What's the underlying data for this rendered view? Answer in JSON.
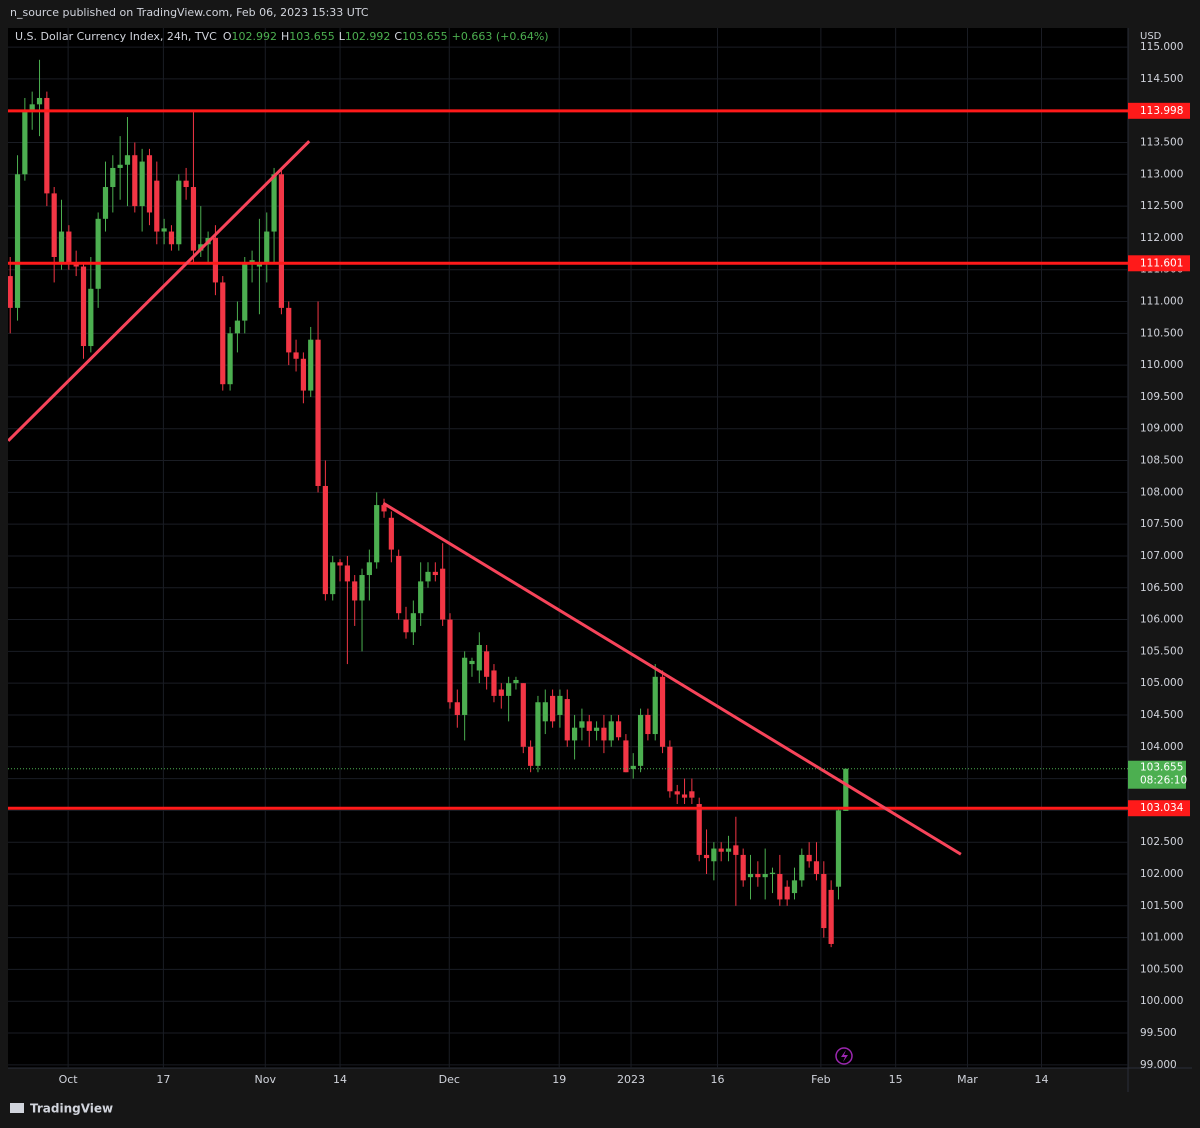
{
  "header": {
    "publisher": "n_source published on TradingView.com, Feb 06, 2023 15:33 UTC"
  },
  "footer": {
    "brand": "TradingView"
  },
  "chart_data": {
    "type": "candlestick",
    "title": "U.S. Dollar Currency Index, 24h, TVC",
    "ohlc_keys": [
      "O",
      "H",
      "L",
      "C"
    ],
    "change": "+0.663 (+0.64%)",
    "currency": "USD",
    "open": [
      111.4,
      110.9,
      113.0,
      114.0,
      114.1,
      114.2,
      112.7,
      111.6,
      112.1,
      111.6,
      111.55,
      110.3,
      111.2,
      112.3,
      112.8,
      113.1,
      113.15,
      113.3,
      112.5,
      113.3,
      112.9,
      112.1,
      112.1,
      111.9,
      112.9,
      112.8,
      111.8,
      111.9,
      112.0,
      111.3,
      109.7,
      110.5,
      110.7,
      111.6,
      111.55,
      111.6,
      112.1,
      113.0,
      110.9,
      110.2,
      110.1,
      109.6,
      110.4,
      108.1,
      106.4,
      106.9,
      106.85,
      106.6,
      106.3,
      106.7,
      106.9,
      107.8,
      107.6,
      107.0,
      106.0,
      105.8,
      106.1,
      106.6,
      106.75,
      106.8,
      106.0,
      104.7,
      104.5,
      105.3,
      105.2,
      105.5,
      105.2,
      104.9,
      104.8,
      105.0,
      105.0,
      104.0,
      103.7,
      104.4,
      104.8,
      104.5,
      104.75,
      104.1,
      104.3,
      104.4,
      104.25,
      104.3,
      104.1,
      104.4,
      104.1,
      103.65,
      103.7,
      104.5,
      104.2,
      105.1,
      104.0,
      103.3,
      103.25,
      103.3,
      103.1,
      102.3,
      102.2,
      102.4,
      102.35,
      102.45,
      102.3,
      101.95,
      102.0,
      101.95,
      102.0,
      102.0,
      101.8,
      101.7,
      101.9,
      102.3,
      102.2,
      102.0,
      101.75,
      101.8,
      102.992
    ],
    "high": [
      111.7,
      113.3,
      114.2,
      114.3,
      114.8,
      114.3,
      112.8,
      112.6,
      112.2,
      111.8,
      111.6,
      111.7,
      112.4,
      113.2,
      113.3,
      113.6,
      113.9,
      113.5,
      113.4,
      113.4,
      113.2,
      112.3,
      112.2,
      113.0,
      113.1,
      114.0,
      112.5,
      112.1,
      112.2,
      111.4,
      110.6,
      111.0,
      111.7,
      111.8,
      112.3,
      112.4,
      113.1,
      113.1,
      111.0,
      110.4,
      110.2,
      110.6,
      111.0,
      108.5,
      107.0,
      106.95,
      107.0,
      106.7,
      106.8,
      107.1,
      108.0,
      107.9,
      107.7,
      107.1,
      106.2,
      106.3,
      106.9,
      106.9,
      106.9,
      107.2,
      106.1,
      104.9,
      105.5,
      105.4,
      105.8,
      105.6,
      105.3,
      105.0,
      105.1,
      105.1,
      105.0,
      104.1,
      104.8,
      104.9,
      104.9,
      104.9,
      104.9,
      104.5,
      104.6,
      104.5,
      104.4,
      104.5,
      104.5,
      104.5,
      104.2,
      103.9,
      104.6,
      104.6,
      105.3,
      105.2,
      104.1,
      103.4,
      103.5,
      103.5,
      103.2,
      102.7,
      102.5,
      102.5,
      102.6,
      102.9,
      102.4,
      102.3,
      102.2,
      102.4,
      102.1,
      102.3,
      101.9,
      102.1,
      102.4,
      102.5,
      102.5,
      102.2,
      101.9,
      103.05,
      103.655
    ],
    "low": [
      110.5,
      110.7,
      112.9,
      113.7,
      113.6,
      112.5,
      111.3,
      111.5,
      111.5,
      111.4,
      110.1,
      110.2,
      110.9,
      112.1,
      112.4,
      112.6,
      112.5,
      112.4,
      112.1,
      112.2,
      111.9,
      111.9,
      111.8,
      111.8,
      112.6,
      111.6,
      111.7,
      111.6,
      111.1,
      109.6,
      109.6,
      110.2,
      110.5,
      111.3,
      110.8,
      111.3,
      111.6,
      110.8,
      110.0,
      109.9,
      109.4,
      109.5,
      108.0,
      106.3,
      106.3,
      106.6,
      105.3,
      105.9,
      105.5,
      106.3,
      106.8,
      107.6,
      106.9,
      106.0,
      105.7,
      105.6,
      105.9,
      106.5,
      106.6,
      105.9,
      104.6,
      104.3,
      104.1,
      105.1,
      105.0,
      104.9,
      104.7,
      104.6,
      104.4,
      104.9,
      103.9,
      103.6,
      103.6,
      104.2,
      104.3,
      104.3,
      104.0,
      103.8,
      104.1,
      104.0,
      104.1,
      103.9,
      104.0,
      104.1,
      103.6,
      103.5,
      103.6,
      104.1,
      104.1,
      103.9,
      103.2,
      103.1,
      103.1,
      103.1,
      102.2,
      102.0,
      101.9,
      102.2,
      102.2,
      101.5,
      101.8,
      101.6,
      101.8,
      101.6,
      101.7,
      101.5,
      101.5,
      101.6,
      101.8,
      102.1,
      101.9,
      101.0,
      100.85,
      101.6,
      102.992
    ],
    "close": [
      110.9,
      113.0,
      114.0,
      114.1,
      114.2,
      112.7,
      111.7,
      112.1,
      111.6,
      111.55,
      110.3,
      111.2,
      112.3,
      112.8,
      113.1,
      113.15,
      113.3,
      112.5,
      113.2,
      112.4,
      112.1,
      112.15,
      111.9,
      112.9,
      112.8,
      111.8,
      111.9,
      112.0,
      111.3,
      109.7,
      110.5,
      110.7,
      111.6,
      111.65,
      111.6,
      112.1,
      113.0,
      110.9,
      110.2,
      110.1,
      109.6,
      110.4,
      108.1,
      106.4,
      106.9,
      106.85,
      106.6,
      106.3,
      106.7,
      106.9,
      107.8,
      107.7,
      107.1,
      106.1,
      105.8,
      106.1,
      106.6,
      106.75,
      106.7,
      106.0,
      104.7,
      104.5,
      105.4,
      105.35,
      105.6,
      105.1,
      104.8,
      104.8,
      105.0,
      105.05,
      104.0,
      103.7,
      104.7,
      104.7,
      104.4,
      104.8,
      104.1,
      104.3,
      104.4,
      104.25,
      104.3,
      104.1,
      104.4,
      104.15,
      103.6,
      103.7,
      104.5,
      104.2,
      105.1,
      104.0,
      103.3,
      103.25,
      103.2,
      103.2,
      102.3,
      102.25,
      102.4,
      102.35,
      102.4,
      102.3,
      101.9,
      102.0,
      101.95,
      102.0,
      102.02,
      101.6,
      101.6,
      101.9,
      102.3,
      102.2,
      102.0,
      101.15,
      100.9,
      103.0,
      103.655
    ],
    "up_color": "#4caf50",
    "down_color": "#f23645",
    "xlim": [
      -0.3,
      152.5
    ],
    "xticks": [
      {
        "value": 7.9,
        "label": "Oct"
      },
      {
        "value": 20.9,
        "label": "17"
      },
      {
        "value": 34.8,
        "label": "Nov"
      },
      {
        "value": 45,
        "label": "14"
      },
      {
        "value": 59.9,
        "label": "Dec"
      },
      {
        "value": 74.9,
        "label": "19"
      },
      {
        "value": 84.7,
        "label": "2023"
      },
      {
        "value": 96.5,
        "label": "16"
      },
      {
        "value": 110.6,
        "label": "Feb"
      },
      {
        "value": 120.8,
        "label": "15"
      },
      {
        "value": 130.6,
        "label": "Mar"
      },
      {
        "value": 140.7,
        "label": "14"
      }
    ],
    "ylim": [
      98.95,
      115.3
    ],
    "yticks": [
      {
        "value": 99,
        "label": "99.000"
      },
      {
        "value": 99.5,
        "label": "99.500"
      },
      {
        "value": 100,
        "label": "100.000"
      },
      {
        "value": 100.5,
        "label": "100.500"
      },
      {
        "value": 101,
        "label": "101.000"
      },
      {
        "value": 101.5,
        "label": "101.500"
      },
      {
        "value": 102,
        "label": "102.000"
      },
      {
        "value": 102.5,
        "label": "102.500"
      },
      {
        "value": 103,
        "label": "103.000"
      },
      {
        "value": 103.5,
        "label": "103.500"
      },
      {
        "value": 104,
        "label": "104.000"
      },
      {
        "value": 104.5,
        "label": "104.500"
      },
      {
        "value": 105,
        "label": "105.000"
      },
      {
        "value": 105.5,
        "label": "105.500"
      },
      {
        "value": 106,
        "label": "106.000"
      },
      {
        "value": 106.5,
        "label": "106.500"
      },
      {
        "value": 107,
        "label": "107.000"
      },
      {
        "value": 107.5,
        "label": "107.500"
      },
      {
        "value": 108,
        "label": "108.000"
      },
      {
        "value": 108.5,
        "label": "108.500"
      },
      {
        "value": 109,
        "label": "109.000"
      },
      {
        "value": 109.5,
        "label": "109.500"
      },
      {
        "value": 110,
        "label": "110.000"
      },
      {
        "value": 110.5,
        "label": "110.500"
      },
      {
        "value": 111,
        "label": "111.000"
      },
      {
        "value": 111.5,
        "label": "111.500"
      },
      {
        "value": 112,
        "label": "112.000"
      },
      {
        "value": 112.5,
        "label": "112.500"
      },
      {
        "value": 113,
        "label": "113.000"
      },
      {
        "value": 113.5,
        "label": "113.500"
      },
      {
        "value": 114,
        "label": "114.000"
      },
      {
        "value": 114.5,
        "label": "114.500"
      },
      {
        "value": 115,
        "label": "115.000"
      }
    ],
    "grid": true,
    "hlines": [
      113.998,
      111.601,
      103.034
    ],
    "hline_color": "#ff1a1a",
    "trendlines": [
      {
        "x": [
          -0.27,
          40.8
        ],
        "y": [
          108.81,
          113.52
        ]
      },
      {
        "x": [
          50.9,
          129.7
        ],
        "y": [
          107.83,
          102.31
        ]
      }
    ],
    "trendline_color": "#f7445a",
    "last_price": 103.655,
    "countdown": "08:26:10"
  }
}
